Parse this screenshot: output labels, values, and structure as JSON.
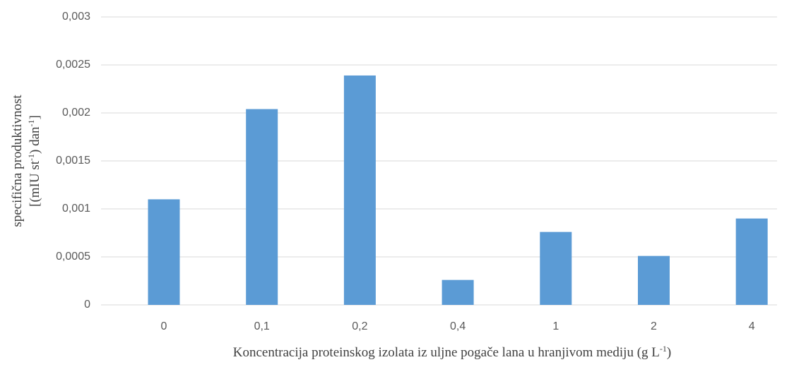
{
  "chart_data": {
    "type": "bar",
    "categories": [
      "0",
      "0,1",
      "0,2",
      "0,4",
      "1",
      "2",
      "4"
    ],
    "values": [
      0.0011,
      0.00204,
      0.00239,
      0.00026,
      0.00076,
      0.00051,
      0.0009
    ],
    "color": "#5b9bd5",
    "ylim": [
      0,
      0.003
    ],
    "yticks": [
      0,
      {
        "value": 0.0005,
        "label": "0,0005"
      },
      {
        "value": 0.001,
        "label": "0,001"
      },
      {
        "value": 0.0015,
        "label": "0,0015"
      },
      {
        "value": 0.002,
        "label": "0,002"
      },
      {
        "value": 0.0025,
        "label": "0,0025"
      },
      {
        "value": 0.003,
        "label": "0,003"
      }
    ],
    "grid": true,
    "y_label": [
      [
        "specifična produktivnost"
      ],
      [
        "[(mIU st",
        "-1",
        ") dan",
        "-1",
        "]"
      ]
    ],
    "x_label": [
      "Koncentracija proteinskog izolata iz uljne pogače lana u hranjivom mediju (g L",
      "-1",
      ")"
    ]
  }
}
